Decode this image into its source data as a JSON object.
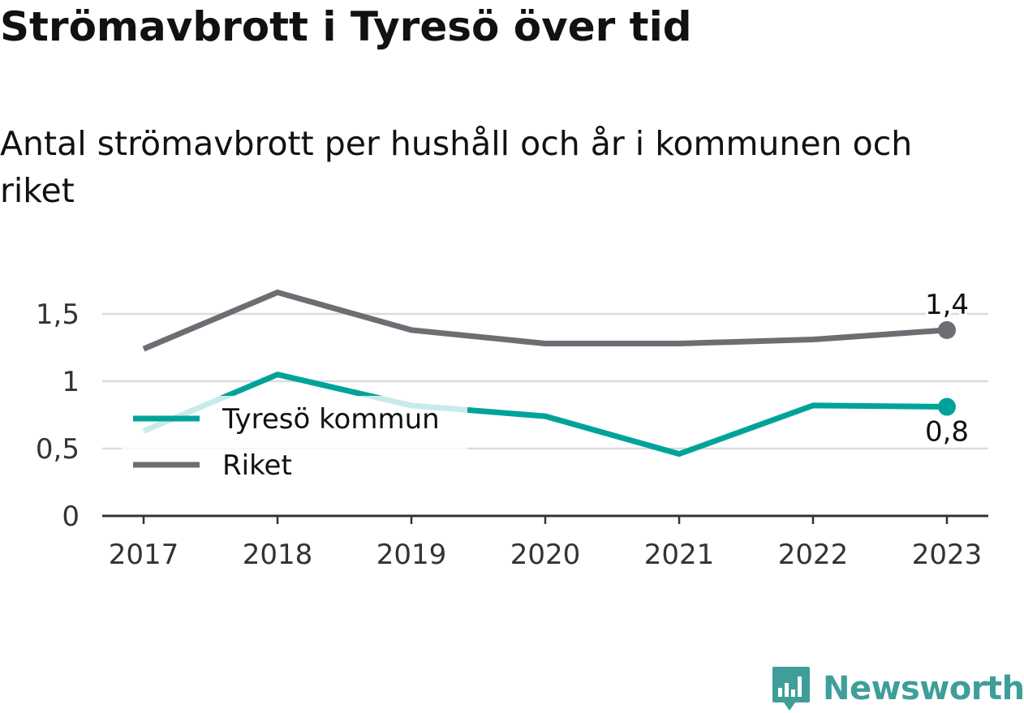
{
  "chart_data": {
    "type": "line",
    "title": "Strömavbrott i Tyresö över tid",
    "subtitle": "Antal strömavbrott per hushåll och år i kommunen och riket",
    "categories": [
      "2017",
      "2018",
      "2019",
      "2020",
      "2021",
      "2022",
      "2023"
    ],
    "series": [
      {
        "name": "Tyresö kommun",
        "color": "#00a39a",
        "values": [
          0.63,
          1.05,
          0.82,
          0.74,
          0.46,
          0.82,
          0.81
        ],
        "end_label": "0,8"
      },
      {
        "name": "Riket",
        "color": "#6e6d73",
        "values": [
          1.24,
          1.66,
          1.38,
          1.28,
          1.28,
          1.31,
          1.38
        ],
        "end_label": "1,4"
      }
    ],
    "yticks": [
      {
        "value": 0,
        "label": "0"
      },
      {
        "value": 0.5,
        "label": "0,5"
      },
      {
        "value": 1,
        "label": "1"
      },
      {
        "value": 1.5,
        "label": "1,5"
      }
    ],
    "ylim": [
      0,
      1.5
    ],
    "grid": true,
    "legend_position": "left-center"
  },
  "brand": {
    "name": "Newsworthy",
    "icon": "newsworthy-logo-icon",
    "color": "#3e9e9a"
  }
}
